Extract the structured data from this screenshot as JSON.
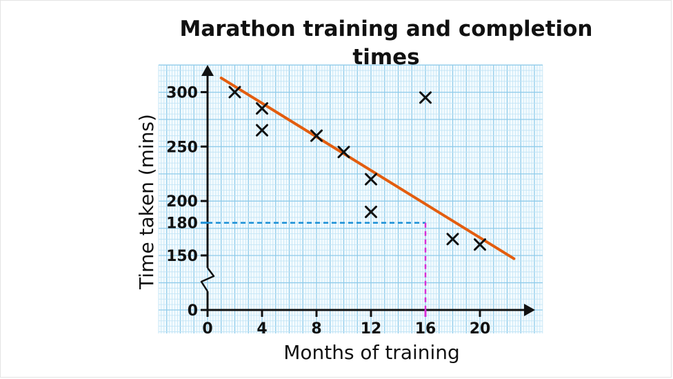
{
  "chart_data": {
    "type": "scatter",
    "title": "Marathon training and completion times",
    "xlabel": "Months of training",
    "ylabel": "Time taken (mins)",
    "xlim": [
      0,
      23
    ],
    "ylim": [
      125,
      315
    ],
    "y_axis_break": true,
    "x_ticks": [
      0,
      4,
      8,
      12,
      20
    ],
    "y_ticks": [
      0,
      150,
      200,
      250,
      300
    ],
    "grid": true,
    "series": [
      {
        "points": [
          {
            "x": 2,
            "y": 300
          },
          {
            "x": 4,
            "y": 285
          },
          {
            "x": 4,
            "y": 265
          },
          {
            "x": 8,
            "y": 260
          },
          {
            "x": 10,
            "y": 245
          },
          {
            "x": 12,
            "y": 220
          },
          {
            "x": 12,
            "y": 190
          },
          {
            "x": 16,
            "y": 295
          },
          {
            "x": 18,
            "y": 165
          },
          {
            "x": 20,
            "y": 160
          }
        ]
      }
    ],
    "line_of_best_fit": {
      "x": [
        1,
        22.5
      ],
      "y": [
        313,
        147
      ],
      "color": "#e35d0f"
    },
    "reading": {
      "x": 16,
      "y": 180,
      "x_label": "16",
      "y_label": "180",
      "x_color": "#d62fd6",
      "y_color": "#1a8fd6"
    },
    "colors": {
      "grid": "#bfe3f5",
      "axis": "#111111",
      "markers": "#111111"
    }
  }
}
